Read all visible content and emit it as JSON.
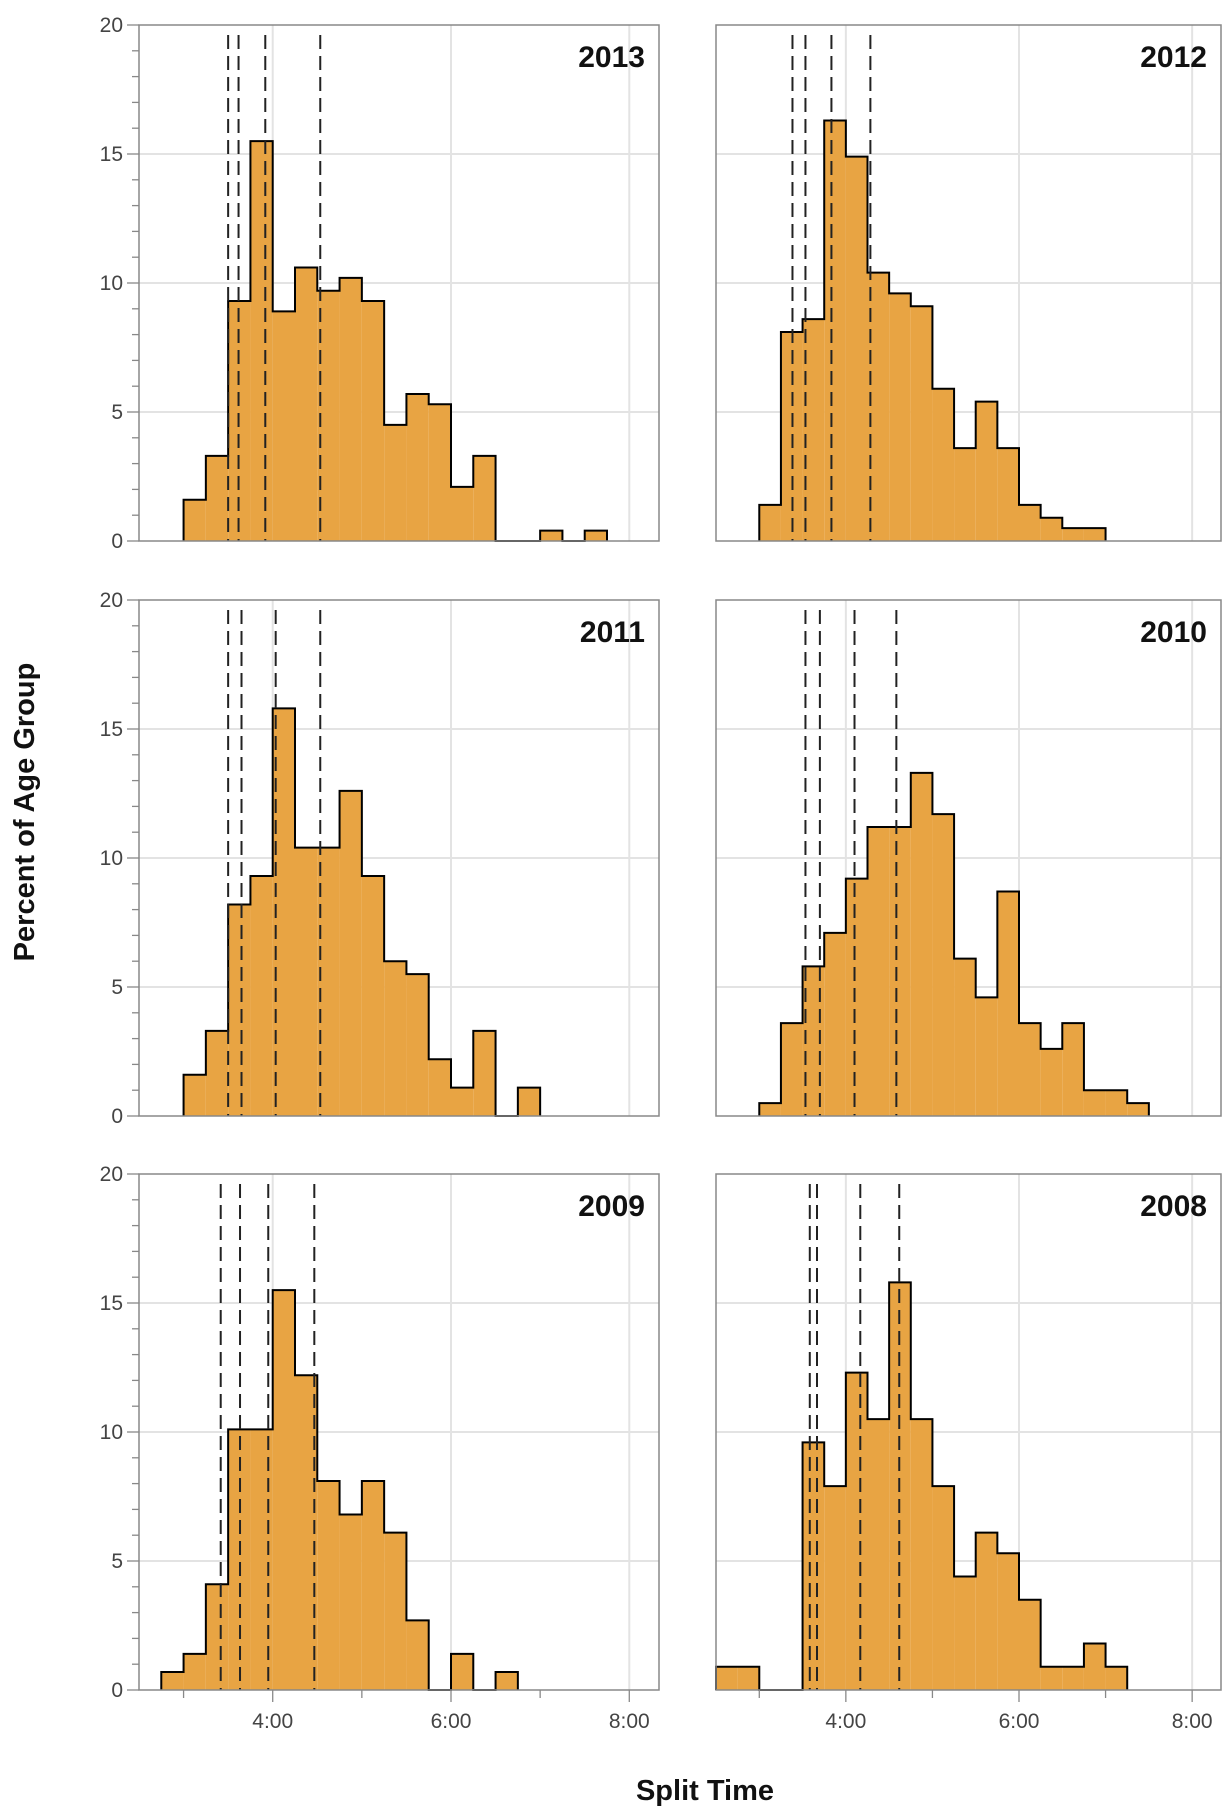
{
  "figure": {
    "xlabel": "Split Time",
    "ylabel": "Percent of Age Group"
  },
  "colors": {
    "fill": "#e8a443",
    "outline": "#000000",
    "grid": "#e3e3e3",
    "frame": "#888888",
    "quantile": "#222222"
  },
  "chart_data": [
    {
      "type": "bar",
      "title": "2013",
      "x_unit": "minutes",
      "xlim": [
        150,
        500
      ],
      "ylim": [
        0,
        20
      ],
      "x_ticks": [
        240,
        360,
        480
      ],
      "x_tick_labels": [
        "4:00",
        "6:00",
        "8:00"
      ],
      "y_ticks": [
        0,
        5,
        10,
        15,
        20
      ],
      "y_tick_labels": [
        "0",
        "5",
        "10",
        "15",
        "20"
      ],
      "bin_start": 180,
      "bin_width": 15,
      "values": [
        1.6,
        3.3,
        9.3,
        15.5,
        8.9,
        10.6,
        9.7,
        10.2,
        9.3,
        4.5,
        5.7,
        5.3,
        2.1,
        3.3,
        0,
        0,
        0.4,
        0,
        0.4
      ],
      "quantile_lines": [
        210,
        217,
        235,
        272
      ],
      "grid": true
    },
    {
      "type": "bar",
      "title": "2012",
      "x_unit": "minutes",
      "xlim": [
        150,
        500
      ],
      "ylim": [
        0,
        20
      ],
      "x_ticks": [
        240,
        360,
        480
      ],
      "x_tick_labels": [
        "4:00",
        "6:00",
        "8:00"
      ],
      "y_ticks": [
        0,
        5,
        10,
        15,
        20
      ],
      "y_tick_labels": [
        "0",
        "5",
        "10",
        "15",
        "20"
      ],
      "bin_start": 180,
      "bin_width": 15,
      "values": [
        1.4,
        8.1,
        8.6,
        16.3,
        14.9,
        10.4,
        9.6,
        9.1,
        5.9,
        3.6,
        5.4,
        3.6,
        1.4,
        0.9,
        0.5,
        0.5
      ],
      "quantile_lines": [
        203,
        212,
        230,
        257
      ],
      "grid": true
    },
    {
      "type": "bar",
      "title": "2011",
      "x_unit": "minutes",
      "xlim": [
        150,
        500
      ],
      "ylim": [
        0,
        20
      ],
      "x_ticks": [
        240,
        360,
        480
      ],
      "x_tick_labels": [
        "4:00",
        "6:00",
        "8:00"
      ],
      "y_ticks": [
        0,
        5,
        10,
        15,
        20
      ],
      "y_tick_labels": [
        "0",
        "5",
        "10",
        "15",
        "20"
      ],
      "bin_start": 180,
      "bin_width": 15,
      "values": [
        1.6,
        3.3,
        8.2,
        9.3,
        15.8,
        10.4,
        10.4,
        12.6,
        9.3,
        6.0,
        5.5,
        2.2,
        1.1,
        3.3,
        0,
        1.1
      ],
      "quantile_lines": [
        210,
        219,
        242,
        272
      ],
      "grid": true
    },
    {
      "type": "bar",
      "title": "2010",
      "x_unit": "minutes",
      "xlim": [
        150,
        500
      ],
      "ylim": [
        0,
        20
      ],
      "x_ticks": [
        240,
        360,
        480
      ],
      "x_tick_labels": [
        "4:00",
        "6:00",
        "8:00"
      ],
      "y_ticks": [
        0,
        5,
        10,
        15,
        20
      ],
      "y_tick_labels": [
        "0",
        "5",
        "10",
        "15",
        "20"
      ],
      "bin_start": 180,
      "bin_width": 15,
      "values": [
        0.5,
        3.6,
        5.8,
        7.1,
        9.2,
        11.2,
        11.2,
        13.3,
        11.7,
        6.1,
        4.6,
        8.7,
        3.6,
        2.6,
        3.6,
        1.0,
        1.0,
        0.5
      ],
      "quantile_lines": [
        212,
        222,
        246,
        275
      ],
      "grid": true
    },
    {
      "type": "bar",
      "title": "2009",
      "x_unit": "minutes",
      "xlim": [
        150,
        500
      ],
      "ylim": [
        0,
        20
      ],
      "x_ticks": [
        240,
        360,
        480
      ],
      "x_tick_labels": [
        "4:00",
        "6:00",
        "8:00"
      ],
      "y_ticks": [
        0,
        5,
        10,
        15,
        20
      ],
      "y_tick_labels": [
        "0",
        "5",
        "10",
        "15",
        "20"
      ],
      "bin_start": 165,
      "bin_width": 15,
      "values": [
        0.7,
        1.4,
        4.1,
        10.1,
        10.1,
        15.5,
        12.2,
        8.1,
        6.8,
        8.1,
        6.1,
        2.7,
        0,
        1.4,
        0,
        0.7
      ],
      "quantile_lines": [
        205,
        218,
        237,
        268
      ],
      "grid": true
    },
    {
      "type": "bar",
      "title": "2008",
      "x_unit": "minutes",
      "xlim": [
        150,
        500
      ],
      "ylim": [
        0,
        20
      ],
      "x_ticks": [
        240,
        360,
        480
      ],
      "x_tick_labels": [
        "4:00",
        "6:00",
        "8:00"
      ],
      "y_ticks": [
        0,
        5,
        10,
        15,
        20
      ],
      "y_tick_labels": [
        "0",
        "5",
        "10",
        "15",
        "20"
      ],
      "bin_start": 150,
      "bin_width": 15,
      "values": [
        0.9,
        0.9,
        0,
        0,
        9.6,
        7.9,
        12.3,
        10.5,
        15.8,
        10.5,
        7.9,
        4.4,
        6.1,
        5.3,
        3.5,
        0.9,
        0.9,
        1.8,
        0.9
      ],
      "quantile_lines": [
        215,
        220,
        250,
        277
      ],
      "grid": true
    }
  ]
}
